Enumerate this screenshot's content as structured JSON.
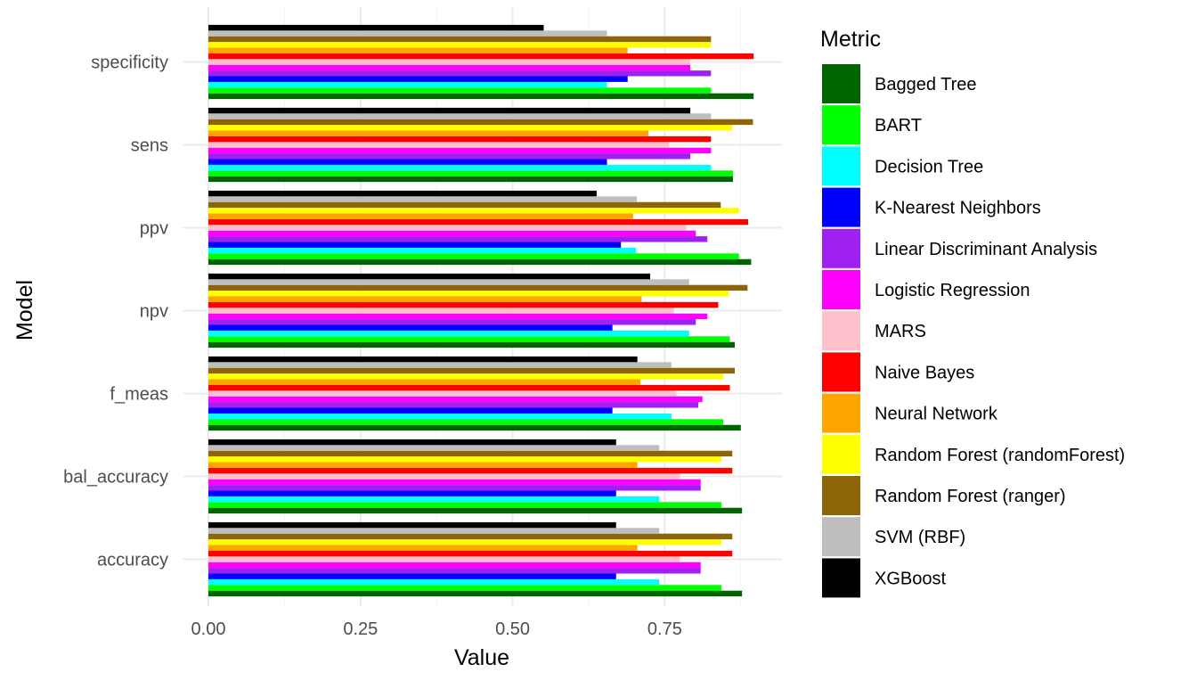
{
  "chart_data": {
    "type": "bar",
    "orientation": "horizontal",
    "title": "",
    "xlabel": "Value",
    "ylabel": "Model",
    "xlim": [
      0,
      0.94
    ],
    "x_ticks": [
      0,
      0.25,
      0.5,
      0.75
    ],
    "x_tick_labels": [
      "0.00",
      "0.25",
      "0.50",
      "0.75"
    ],
    "grid": true,
    "legend": {
      "title": "Metric",
      "position": "right"
    },
    "categories": [
      "accuracy",
      "bal_accuracy",
      "f_meas",
      "npv",
      "ppv",
      "sens",
      "specificity"
    ],
    "series": [
      {
        "name": "Bagged Tree",
        "color": "#006400",
        "values": [
          0.877,
          0.877,
          0.875,
          0.865,
          0.892,
          0.862,
          0.896
        ]
      },
      {
        "name": "BART",
        "color": "#00FF00",
        "values": [
          0.843,
          0.843,
          0.846,
          0.857,
          0.872,
          0.862,
          0.826
        ]
      },
      {
        "name": "Decision Tree",
        "color": "#00FFFF",
        "values": [
          0.741,
          0.741,
          0.761,
          0.79,
          0.703,
          0.826,
          0.655
        ]
      },
      {
        "name": "K-Nearest Neighbors",
        "color": "#0000FF",
        "values": [
          0.67,
          0.67,
          0.664,
          0.664,
          0.678,
          0.655,
          0.689
        ]
      },
      {
        "name": "Linear Discriminant Analysis",
        "color": "#A020F0",
        "values": [
          0.809,
          0.809,
          0.805,
          0.801,
          0.82,
          0.792,
          0.826
        ]
      },
      {
        "name": "Logistic Regression",
        "color": "#FF00FF",
        "values": [
          0.809,
          0.809,
          0.812,
          0.82,
          0.801,
          0.826,
          0.792
        ]
      },
      {
        "name": "MARS",
        "color": "#FFC0CB",
        "values": [
          0.775,
          0.775,
          0.769,
          0.765,
          0.785,
          0.757,
          0.792
        ]
      },
      {
        "name": "Naive Bayes",
        "color": "#FF0000",
        "values": [
          0.861,
          0.861,
          0.857,
          0.838,
          0.887,
          0.826,
          0.896
        ]
      },
      {
        "name": "Neural Network",
        "color": "#FFA500",
        "values": [
          0.705,
          0.705,
          0.71,
          0.712,
          0.698,
          0.723,
          0.689
        ]
      },
      {
        "name": "Random Forest (randomForest)",
        "color": "#FFFF00",
        "values": [
          0.843,
          0.843,
          0.846,
          0.855,
          0.872,
          0.861,
          0.826
        ]
      },
      {
        "name": "Random Forest (ranger)",
        "color": "#8B6508",
        "values": [
          0.861,
          0.861,
          0.865,
          0.886,
          0.842,
          0.895,
          0.826
        ]
      },
      {
        "name": "SVM (RBF)",
        "color": "#BEBEBE",
        "values": [
          0.741,
          0.741,
          0.761,
          0.79,
          0.704,
          0.826,
          0.655
        ]
      },
      {
        "name": "XGBoost",
        "color": "#000000",
        "values": [
          0.67,
          0.67,
          0.705,
          0.726,
          0.638,
          0.792,
          0.551
        ]
      }
    ]
  }
}
